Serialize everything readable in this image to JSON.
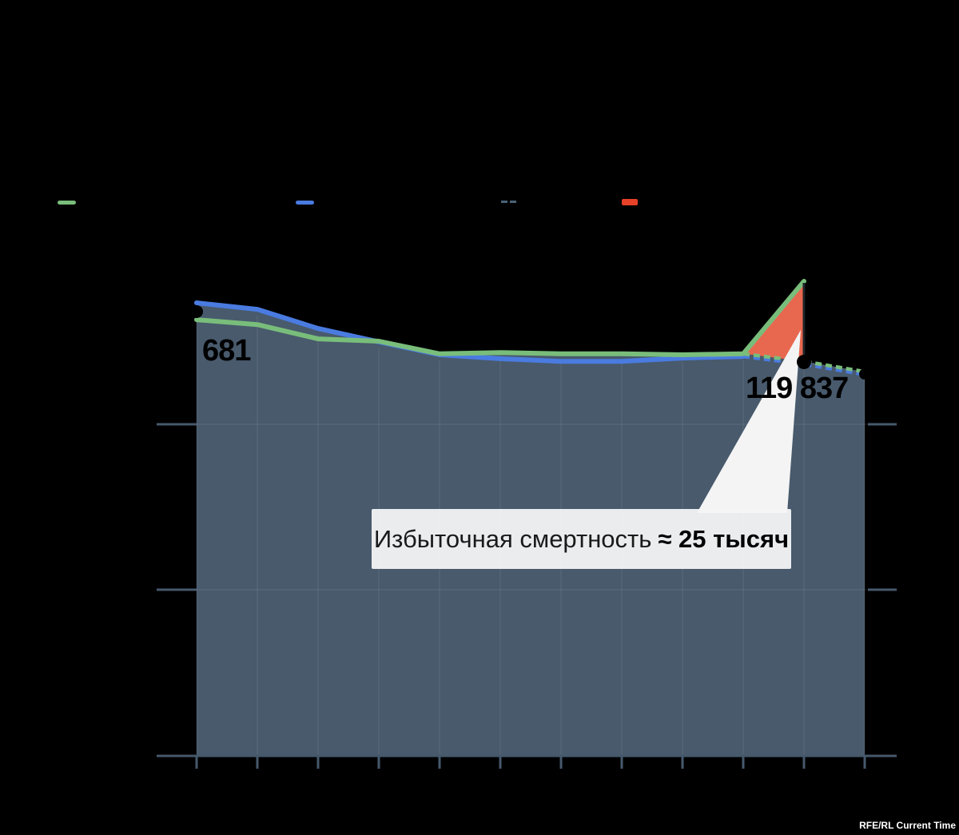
{
  "watermark": "RFE/RL Current Time",
  "labels": {
    "start_value": "681",
    "peak_value": "119 837"
  },
  "annotation": {
    "regular": "Избыточная смертность",
    "bold": "≈ 25 тысяч"
  },
  "legend": {
    "items": [
      {
        "name": "legend-green-line",
        "swatch": "line",
        "color": "#79BD7B"
      },
      {
        "name": "legend-blue-line",
        "swatch": "line",
        "color": "#4A7BE0"
      },
      {
        "name": "legend-dashed-line",
        "swatch": "dashed-line",
        "color": "#4A6378"
      },
      {
        "name": "legend-excess-area",
        "swatch": "filled-rect",
        "color": "#E74128"
      }
    ]
  },
  "chart_data": {
    "type": "area",
    "title": "",
    "xlabel": "",
    "ylabel": "",
    "x_unit": "month",
    "months": [
      1,
      2,
      3,
      4,
      5,
      6,
      7,
      8,
      9,
      10,
      11,
      12
    ],
    "x_axis": {
      "tick_count": 12,
      "tick_labels_visible": false
    },
    "y_axis": {
      "tick_labels_visible": false,
      "gridline_count": 2
    },
    "values_estimated_from_pixels": true,
    "series": [
      {
        "name": "monthly-deaths-actual",
        "color": "#79BD7B",
        "style": "solid",
        "start_month": 1,
        "values": [
          108000,
          106500,
          102100,
          101400,
          97500,
          97900,
          97500,
          97500,
          97200,
          97500,
          119837
        ]
      },
      {
        "name": "monthly-deaths-baseline",
        "color": "#4A7BE0",
        "style": "solid",
        "start_month": 1,
        "values": [
          113200,
          111200,
          105300,
          101200,
          97200,
          96000,
          95200,
          95200,
          96200,
          96700
        ]
      },
      {
        "name": "projection-green",
        "color": "#79BD7B",
        "style": "dashed",
        "start_month": 10,
        "values": [
          97500,
          95200,
          92000
        ]
      },
      {
        "name": "projection-blue",
        "color": "#4A7BE0",
        "style": "dashed",
        "start_month": 10,
        "values": [
          96700,
          94300,
          91100
        ]
      }
    ],
    "markers": [
      {
        "name": "start-dot",
        "month": 1,
        "value": 110500,
        "label": "681"
      },
      {
        "name": "peak-dot",
        "month": 11,
        "value": 95000,
        "label": "119 837"
      },
      {
        "name": "end-dot",
        "month": 12,
        "value": 91300,
        "label": ""
      }
    ],
    "excess_area": {
      "from_month": 10,
      "to_month": 11,
      "peak_value": 119837,
      "baseline_value": 95200,
      "approx_excess_label": "≈ 25 тысяч",
      "color": "#E8684F"
    },
    "area_fill_color": "#485A6C",
    "axis_color": "#46596C",
    "legend_position": "top"
  }
}
